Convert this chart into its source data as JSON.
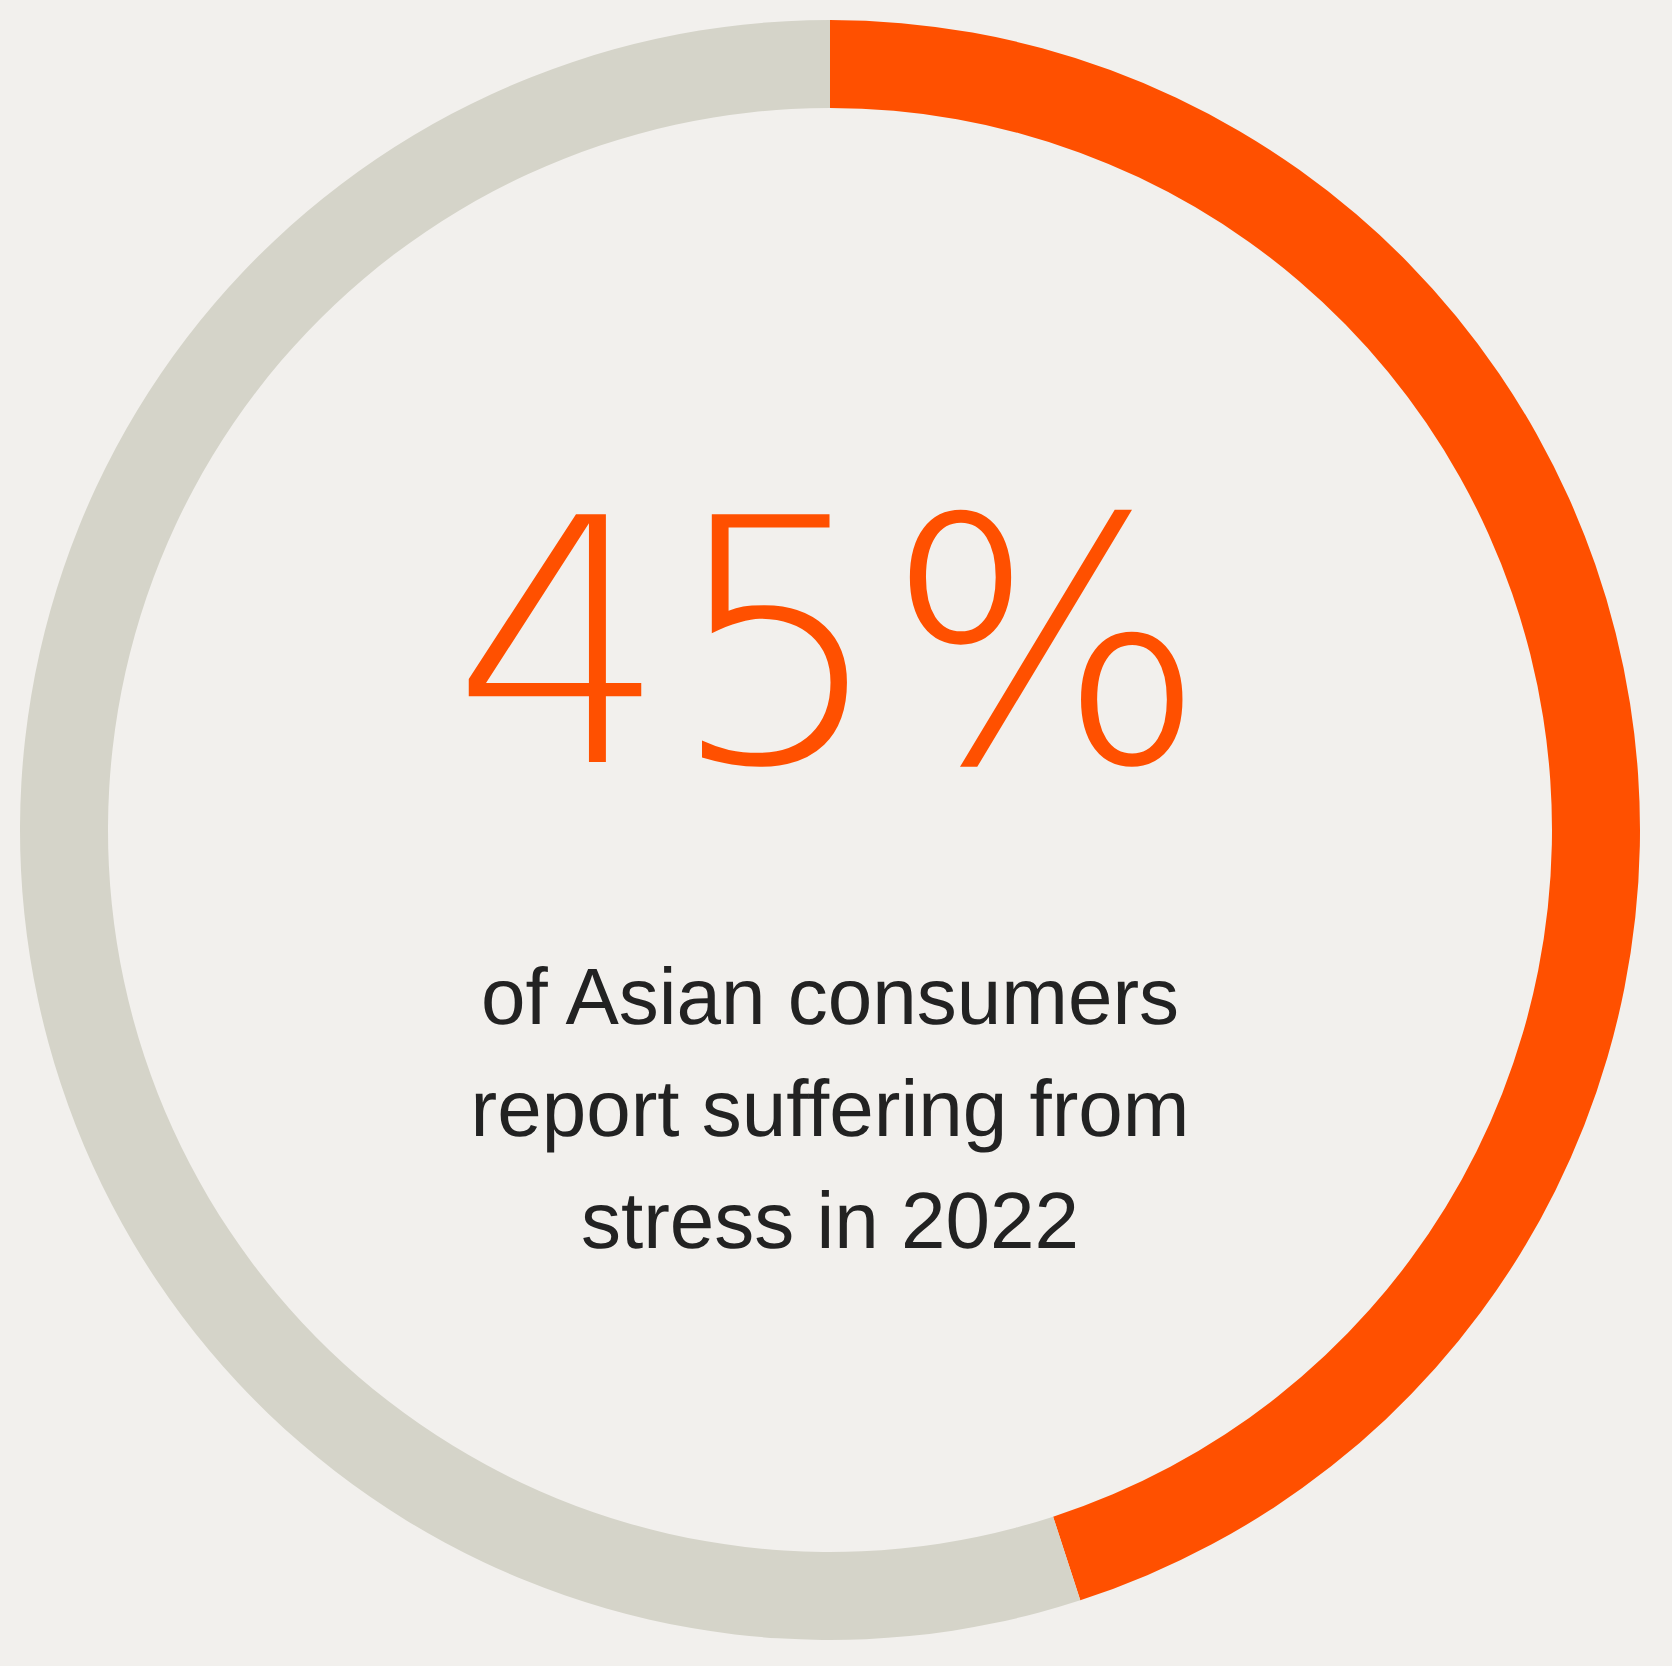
{
  "chart_data": {
    "type": "donut",
    "categories": [
      null,
      null
    ],
    "values": [
      45,
      55
    ],
    "colors": [
      "#ff5000",
      "#d5d4c9"
    ],
    "value_labels": [
      "45%",
      null
    ],
    "annotations": [
      "of Asian consumers report suffering from stress in 2022"
    ]
  }
}
